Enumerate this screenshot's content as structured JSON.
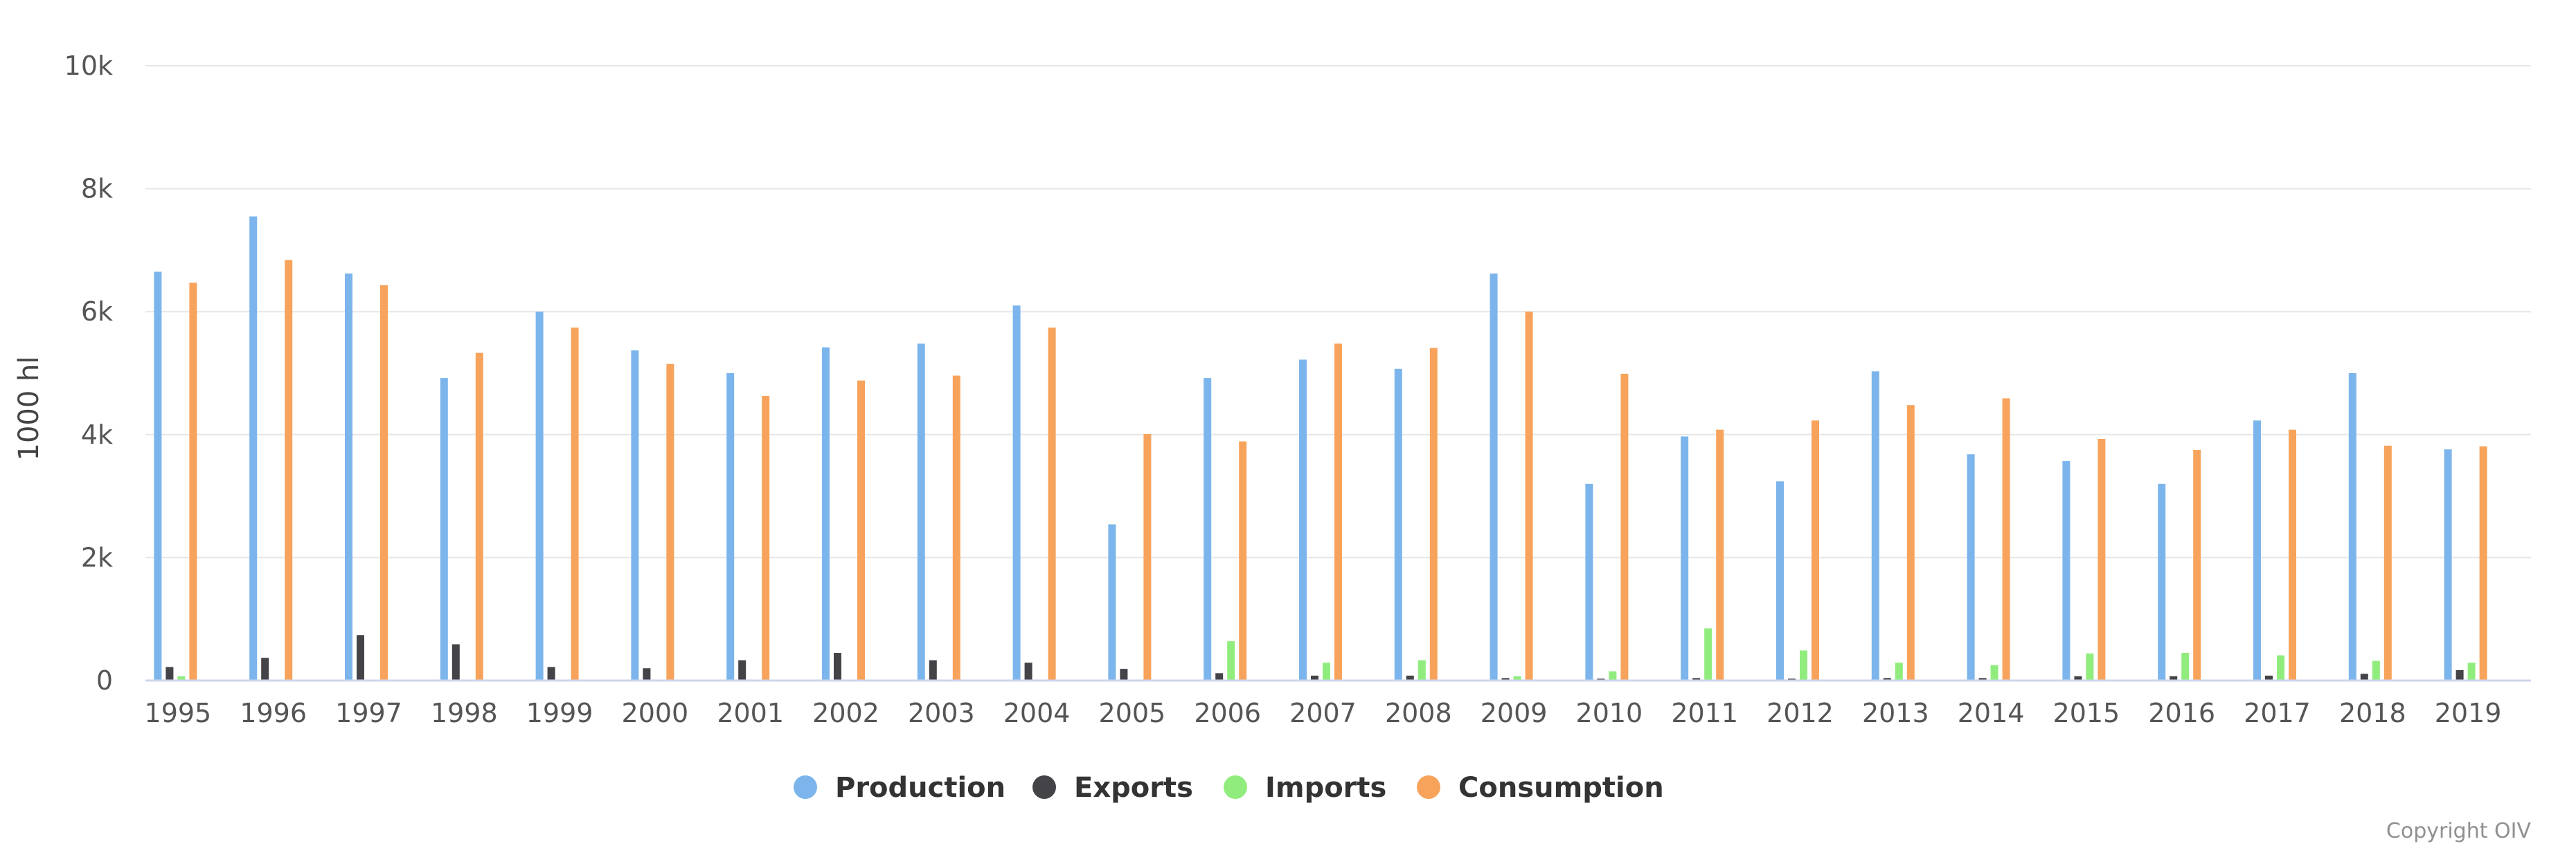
{
  "chart_data": {
    "type": "bar",
    "title": "",
    "xlabel": "",
    "ylabel": "1000 hl",
    "ylim": [
      0,
      10000
    ],
    "y_ticks": [
      "0",
      "2k",
      "4k",
      "6k",
      "8k",
      "10k"
    ],
    "categories": [
      "1995",
      "1996",
      "1997",
      "1998",
      "1999",
      "2000",
      "2001",
      "2002",
      "2003",
      "2004",
      "2005",
      "2006",
      "2007",
      "2008",
      "2009",
      "2010",
      "2011",
      "2012",
      "2013",
      "2014",
      "2015",
      "2016",
      "2017",
      "2018",
      "2019"
    ],
    "series": [
      {
        "name": "Production",
        "color": "#7cb5ec",
        "values": [
          6650,
          7550,
          6620,
          4920,
          6000,
          5370,
          5000,
          5420,
          5480,
          6100,
          2540,
          4920,
          5220,
          5070,
          6620,
          3200,
          3970,
          3240,
          5030,
          3680,
          3570,
          3200,
          4230,
          5000,
          3760
        ]
      },
      {
        "name": "Exports",
        "color": "#434348",
        "values": [
          220,
          370,
          740,
          590,
          220,
          200,
          330,
          450,
          330,
          290,
          190,
          120,
          80,
          80,
          40,
          30,
          40,
          30,
          40,
          40,
          70,
          70,
          80,
          110,
          170
        ]
      },
      {
        "name": "Imports",
        "color": "#90ed7d",
        "values": [
          70,
          10,
          10,
          10,
          10,
          10,
          10,
          10,
          10,
          10,
          10,
          640,
          290,
          330,
          70,
          150,
          850,
          490,
          290,
          250,
          440,
          450,
          410,
          320,
          290
        ]
      },
      {
        "name": "Consumption",
        "color": "#f7a35c",
        "values": [
          6470,
          6840,
          6430,
          5330,
          5740,
          5150,
          4630,
          4880,
          4960,
          5740,
          4010,
          3890,
          5480,
          5410,
          6000,
          4990,
          4080,
          4230,
          4480,
          4590,
          3930,
          3750,
          4080,
          3820,
          3810
        ]
      }
    ]
  },
  "credit": "Copyright OIV"
}
